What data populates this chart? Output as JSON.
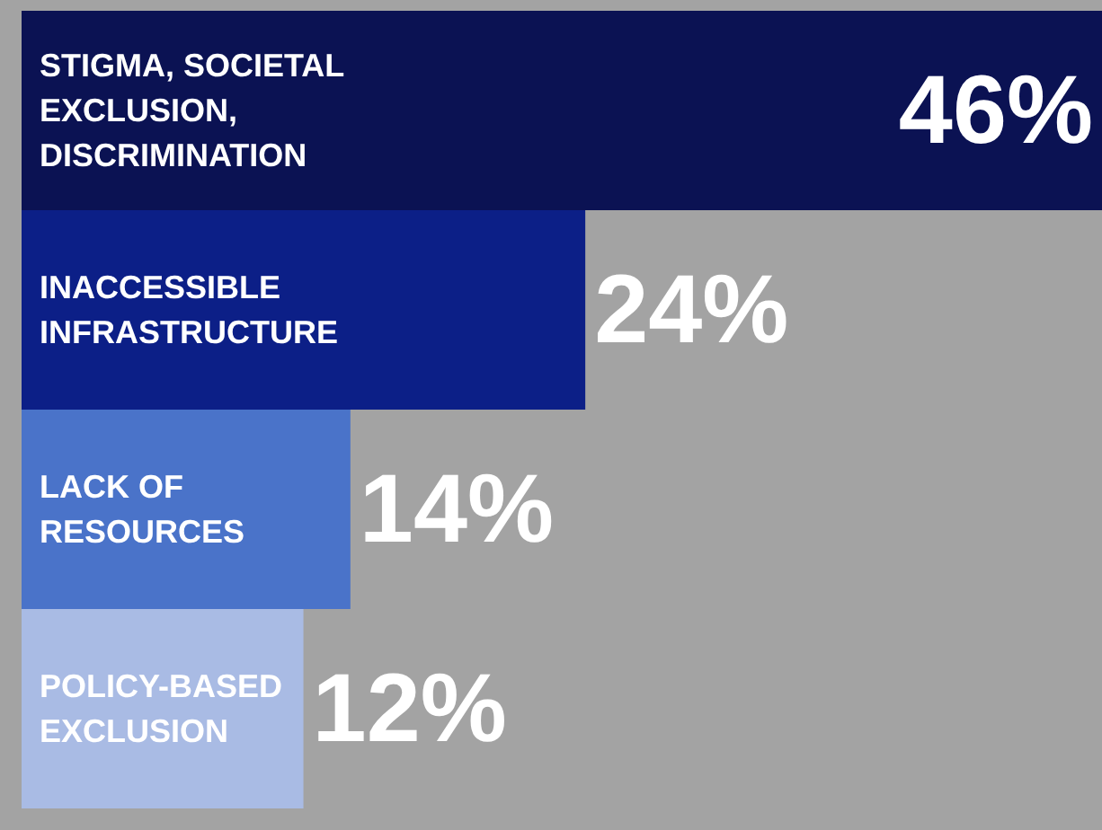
{
  "chart_data": {
    "type": "bar",
    "orientation": "horizontal",
    "categories": [
      "STIGMA, SOCIETAL EXCLUSION, DISCRIMINATION",
      "INACCESSIBLE INFRASTRUCTURE",
      "LACK OF RESOURCES",
      "POLICY-BASED EXCLUSION"
    ],
    "values": [
      46,
      24,
      14,
      12
    ],
    "colors": [
      "#0b1253",
      "#0c1f87",
      "#4a73c9",
      "#a9bbe4"
    ],
    "value_labels": [
      "46%",
      "24%",
      "14%",
      "12%"
    ]
  }
}
